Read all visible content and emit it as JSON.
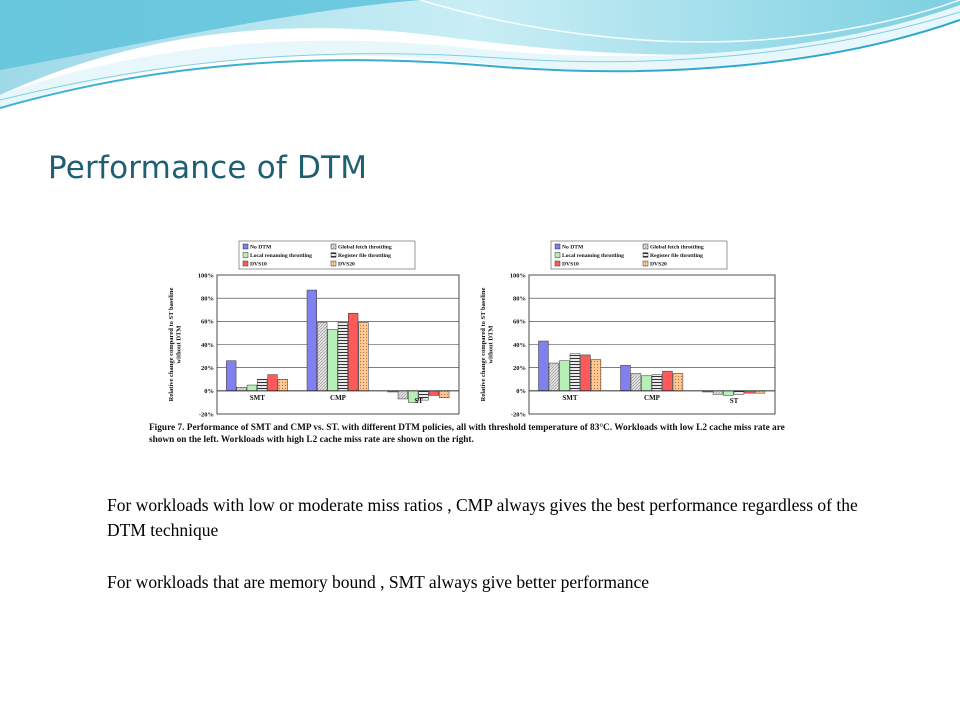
{
  "slide": {
    "title": "Performance of DTM",
    "paragraphs": [
      "For workloads with low or moderate miss ratios , CMP always gives the best performance regardless of the DTM technique",
      "For workloads that are memory  bound , SMT always give better performance"
    ]
  },
  "figure": {
    "caption": "Figure 7. Performance of SMT and CMP vs. ST. with different DTM policies, all with threshold temperature of 83°C. Workloads with low L2 cache miss rate are shown on the left. Workloads with high L2 cache miss rate are shown on the right."
  },
  "colors": {
    "title": "#1f5f73",
    "series": [
      "#8080ee",
      "#d8d8d8",
      "#b6f0b6",
      "#404048",
      "#ff5a5a",
      "#ffc896"
    ]
  },
  "chart_data": [
    {
      "type": "bar",
      "categories": [
        "SMT",
        "CMP",
        "ST"
      ],
      "series": [
        {
          "name": "No DTM",
          "values": [
            26,
            87,
            -1
          ]
        },
        {
          "name": "Global fetch throttling",
          "values": [
            3,
            59,
            -7
          ]
        },
        {
          "name": "Local renaming throttling",
          "values": [
            5,
            53,
            -10
          ]
        },
        {
          "name": "Register file throttling",
          "values": [
            10,
            59,
            -8
          ]
        },
        {
          "name": "DVS10",
          "values": [
            14,
            67,
            -4
          ]
        },
        {
          "name": "DVS20",
          "values": [
            10,
            59,
            -6
          ]
        }
      ],
      "ylabel": "Relative change compared to ST baseline without DTM",
      "ylim": [
        -20,
        100
      ],
      "yticks": [
        "-20%",
        "0%",
        "20%",
        "40%",
        "60%",
        "80%",
        "100%"
      ],
      "grid": true,
      "legend_position": "top"
    },
    {
      "type": "bar",
      "categories": [
        "SMT",
        "CMP",
        "ST"
      ],
      "series": [
        {
          "name": "No DTM",
          "values": [
            43,
            22,
            -1
          ]
        },
        {
          "name": "Global fetch throttling",
          "values": [
            24,
            15,
            -3
          ]
        },
        {
          "name": "Local renaming throttling",
          "values": [
            26,
            13,
            -4
          ]
        },
        {
          "name": "Register file throttling",
          "values": [
            32,
            14,
            -3
          ]
        },
        {
          "name": "DVS10",
          "values": [
            31,
            17,
            -2
          ]
        },
        {
          "name": "DVS20",
          "values": [
            27,
            15,
            -2
          ]
        }
      ],
      "ylabel": "Relative change compared to ST baseline without DTM",
      "ylim": [
        -20,
        100
      ],
      "yticks": [
        "-20%",
        "0%",
        "20%",
        "40%",
        "60%",
        "80%",
        "100%"
      ],
      "grid": true,
      "legend_position": "top"
    }
  ]
}
